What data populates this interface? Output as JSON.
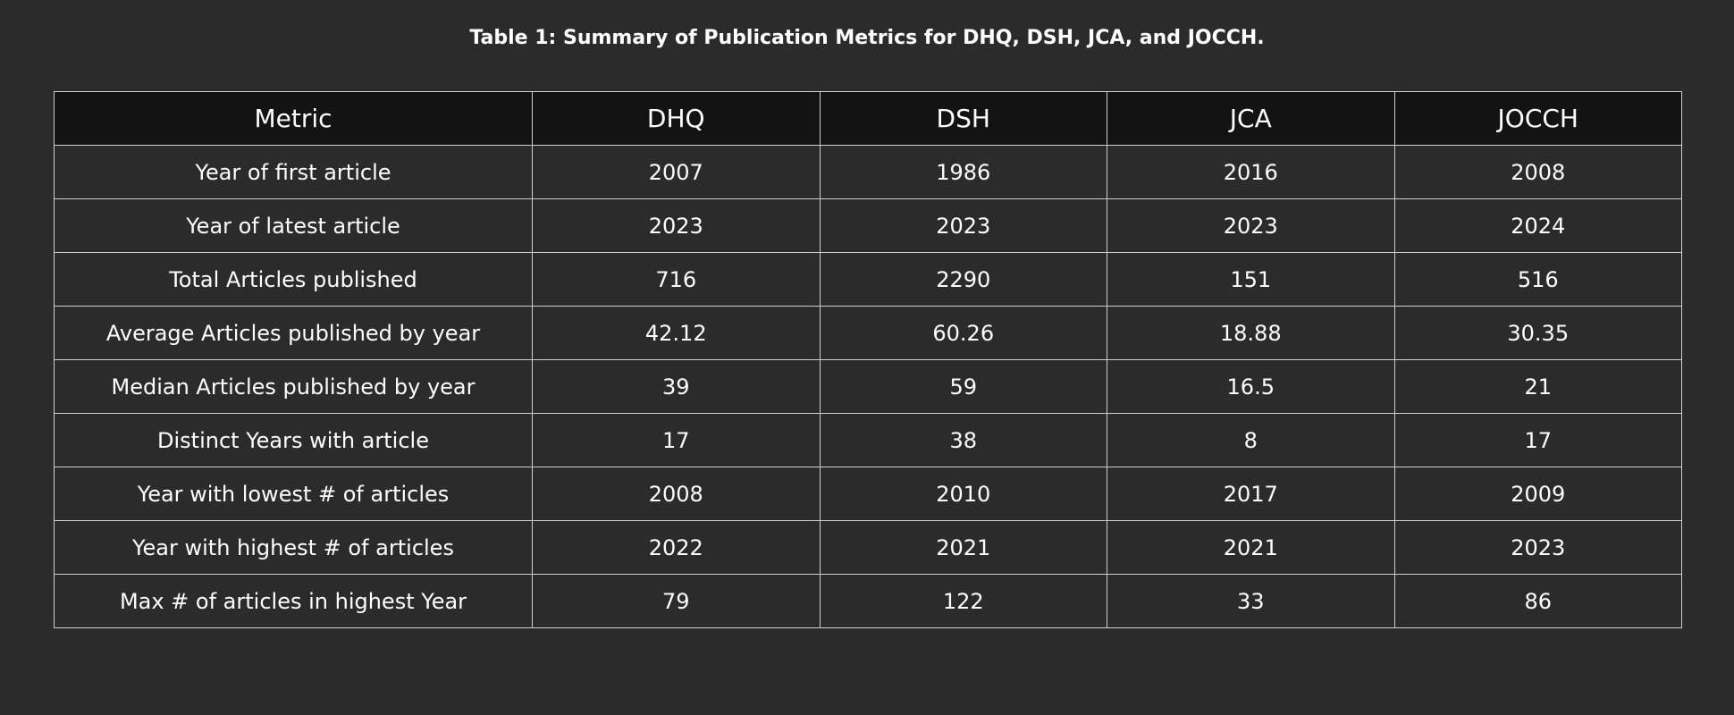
{
  "caption": "Table 1: Summary of Publication Metrics for DHQ, DSH, JCA, and JOCCH.",
  "table": {
    "headers": [
      "Metric",
      "DHQ",
      "DSH",
      "JCA",
      "JOCCH"
    ],
    "rows": [
      [
        "Year of first article",
        "2007",
        "1986",
        "2016",
        "2008"
      ],
      [
        "Year of latest article",
        "2023",
        "2023",
        "2023",
        "2024"
      ],
      [
        "Total Articles published",
        "716",
        "2290",
        "151",
        "516"
      ],
      [
        "Average Articles published by year",
        "42.12",
        "60.26",
        "18.88",
        "30.35"
      ],
      [
        "Median Articles published by year",
        "39",
        "59",
        "16.5",
        "21"
      ],
      [
        "Distinct Years with article",
        "17",
        "38",
        "8",
        "17"
      ],
      [
        "Year with lowest # of articles",
        "2008",
        "2010",
        "2017",
        "2009"
      ],
      [
        "Year with highest # of articles",
        "2022",
        "2021",
        "2021",
        "2023"
      ],
      [
        "Max # of articles in highest Year",
        "79",
        "122",
        "33",
        "86"
      ]
    ]
  },
  "colors": {
    "background": "#2b2b2b",
    "header_background": "#131313",
    "border": "#cfcfcf",
    "text": "#ffffff"
  }
}
